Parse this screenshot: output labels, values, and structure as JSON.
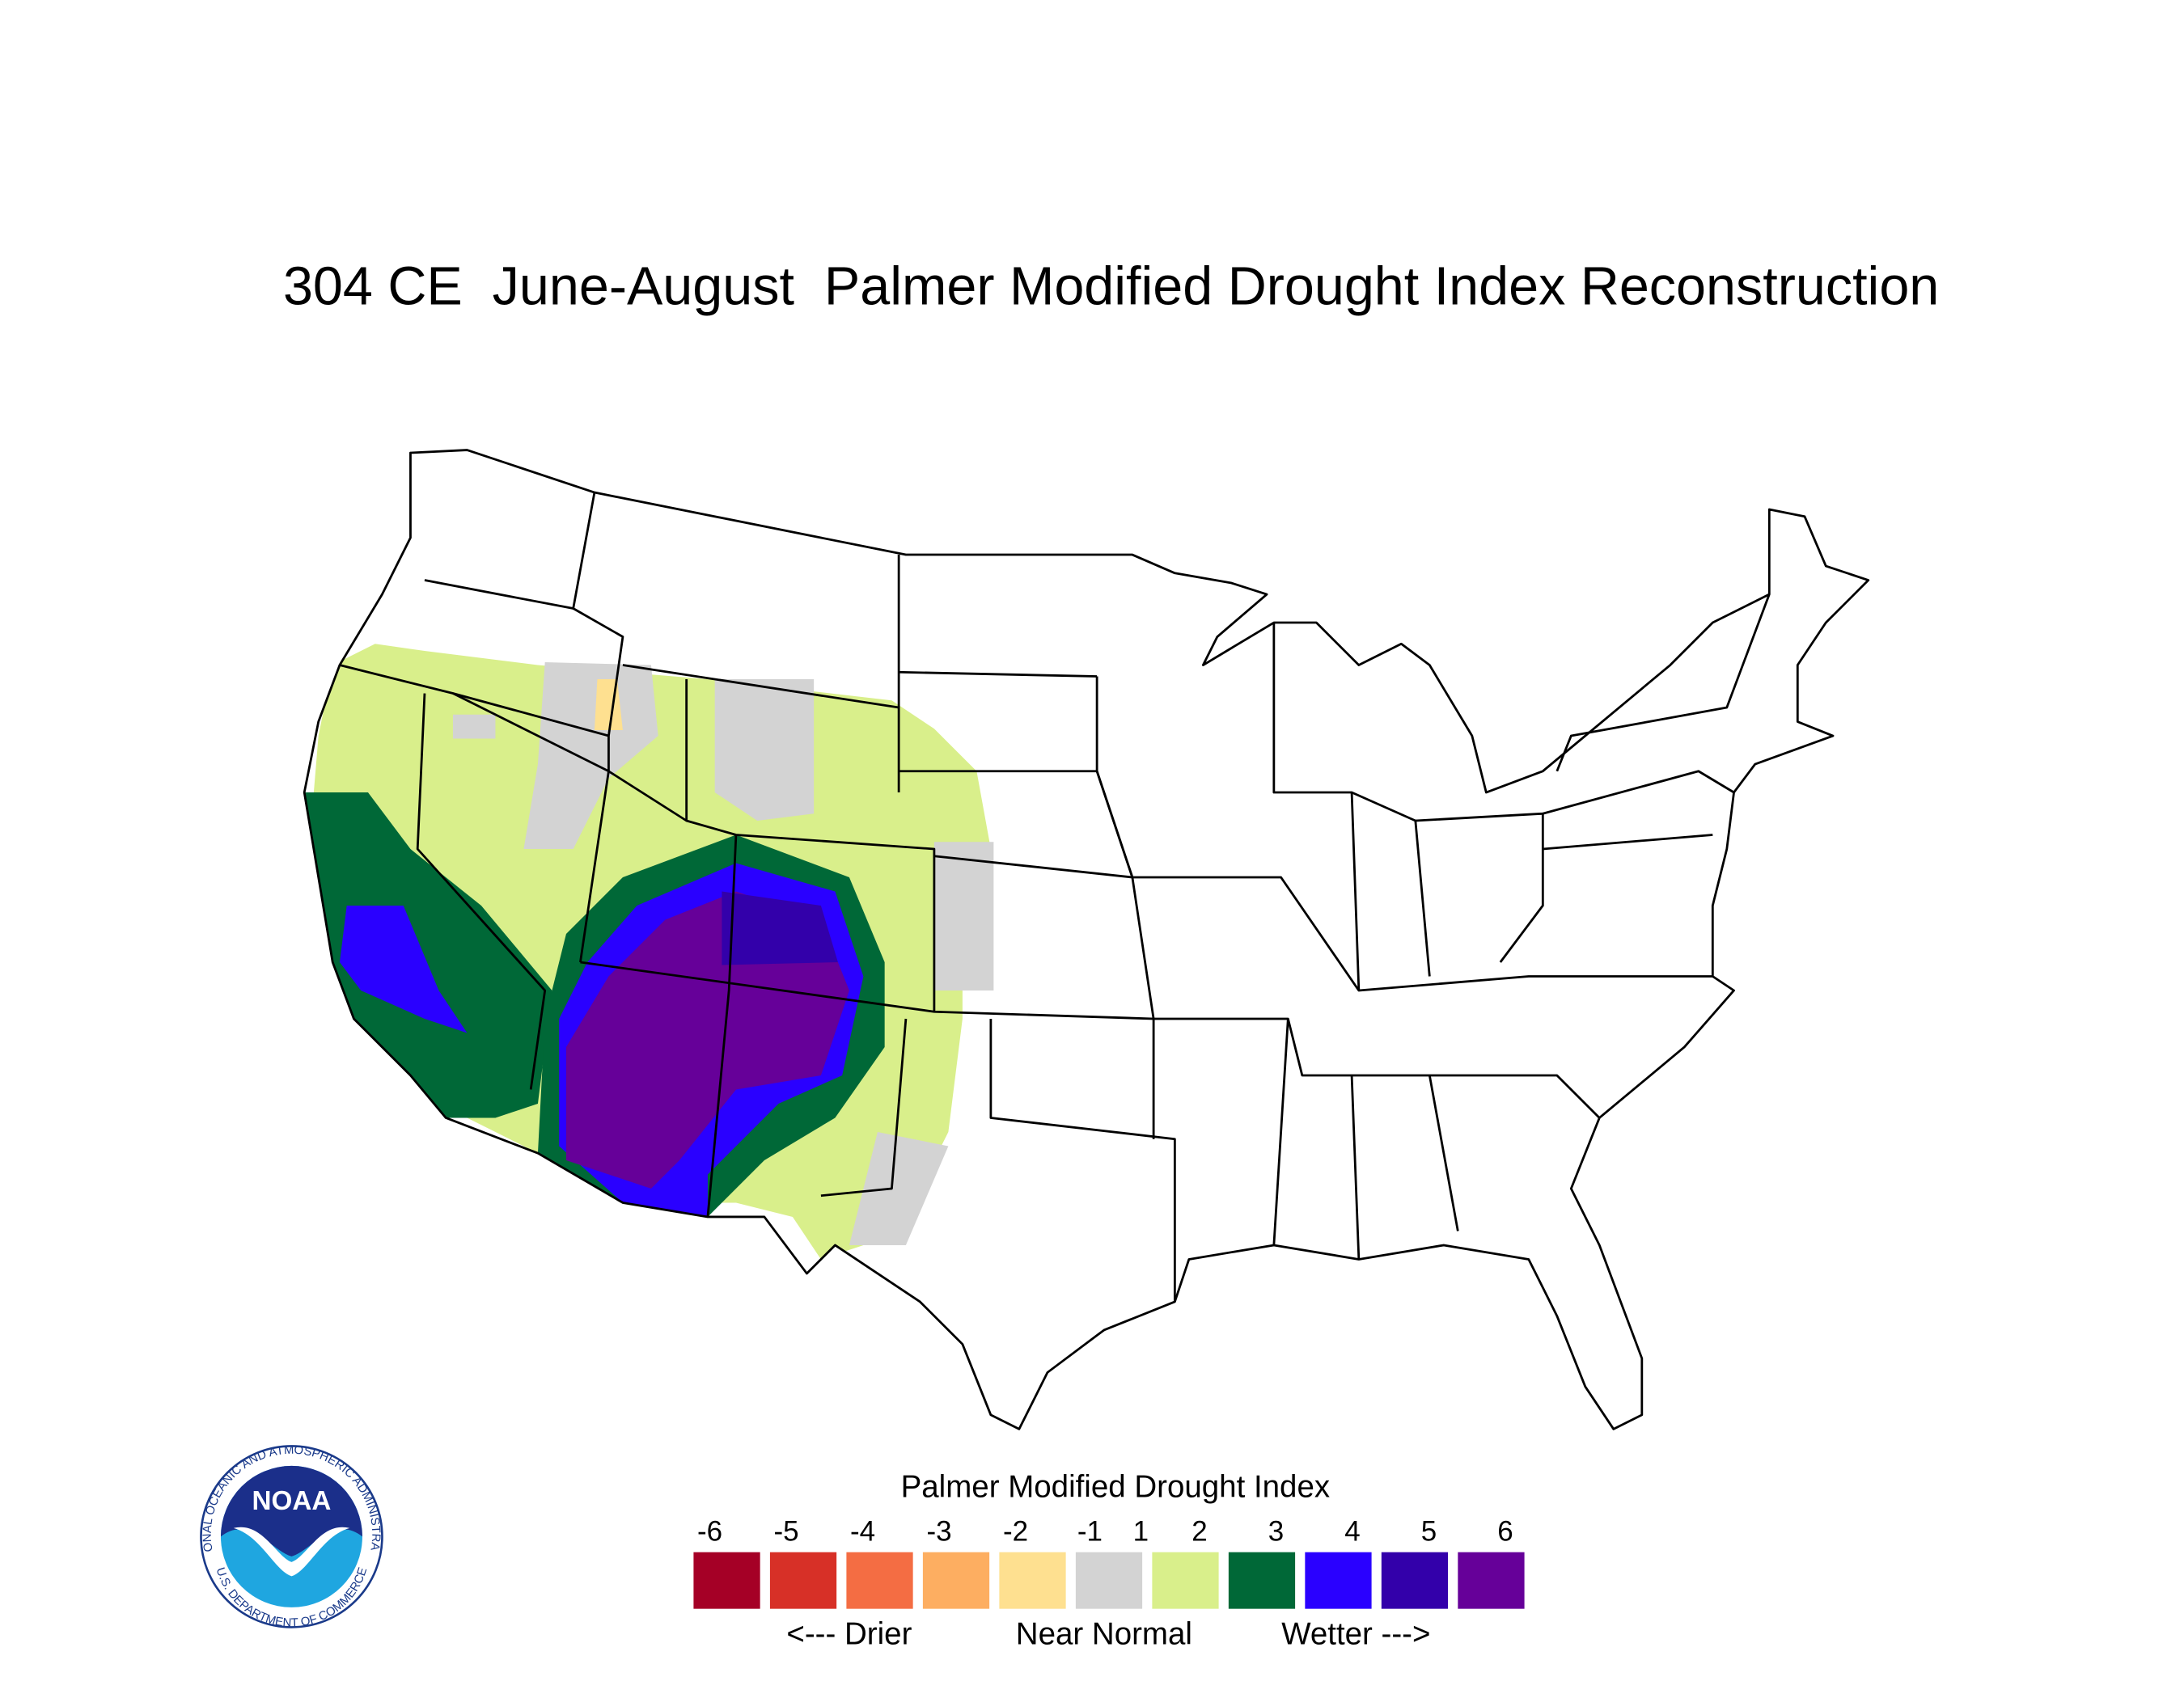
{
  "title": "304 CE  June-August  Palmer Modified Drought Index Reconstruction",
  "legend": {
    "title": "Palmer Modified Drought Index",
    "ticks": [
      -6,
      -5,
      -4,
      -3,
      -2,
      -1,
      1,
      2,
      3,
      4,
      5,
      6
    ],
    "colors": [
      "#a50026",
      "#d73027",
      "#f46d43",
      "#fdae61",
      "#fee090",
      "#d3d3d3",
      "#d9ef8b",
      "#006837",
      "#2a00ff",
      "#3300aa",
      "#660099"
    ],
    "labels": [
      "<--- Drier",
      "Near Normal",
      "Wetter --->"
    ]
  },
  "logo": {
    "name": "NOAA",
    "ring_top": "NATIONAL OCEANIC AND ATMOSPHERIC ADMINISTRATION",
    "ring_bottom": "U.S. DEPARTMENT OF COMMERCE"
  }
}
